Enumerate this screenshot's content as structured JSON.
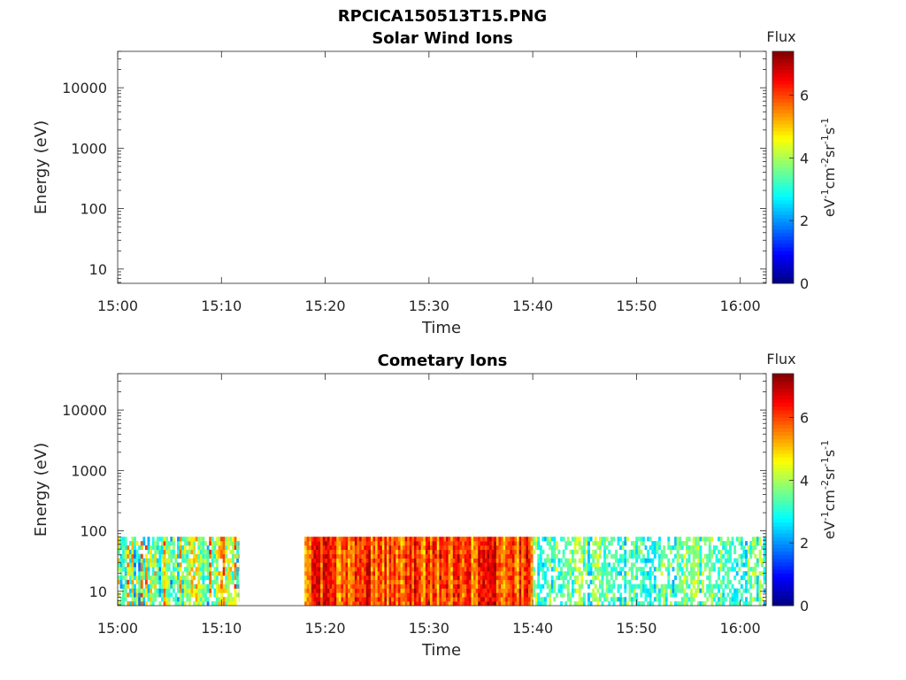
{
  "figure": {
    "title": "RPCICA150513T15.PNG"
  },
  "colorbar": {
    "title": "Flux",
    "ticks": [
      0,
      2,
      4,
      6
    ],
    "range": [
      0,
      7.4
    ],
    "label_base": "eV",
    "label_parts": [
      "-1",
      "cm",
      "-2",
      "sr",
      "-1",
      "s",
      "-1"
    ],
    "colormap": "jet"
  },
  "chart_data": [
    {
      "type": "heatmap",
      "title": "Solar Wind Ions",
      "xlabel": "Time",
      "ylabel": "Energy (eV)",
      "x_ticks": [
        "15:00",
        "15:10",
        "15:20",
        "15:30",
        "15:40",
        "15:50",
        "16:00"
      ],
      "x_range_minutes": [
        0,
        62.5
      ],
      "y_scale": "log",
      "y_ticks": [
        10,
        100,
        1000,
        10000
      ],
      "y_tick_labels": [
        "10",
        "100",
        "1000",
        "10000"
      ],
      "y_range": [
        5.8,
        40000
      ],
      "segments": []
    },
    {
      "type": "heatmap",
      "title": "Cometary Ions",
      "xlabel": "Time",
      "ylabel": "Energy (eV)",
      "x_ticks": [
        "15:00",
        "15:10",
        "15:20",
        "15:30",
        "15:40",
        "15:50",
        "16:00"
      ],
      "x_range_minutes": [
        0,
        62.5
      ],
      "y_scale": "log",
      "y_ticks": [
        10,
        100,
        1000,
        10000
      ],
      "y_tick_labels": [
        "10",
        "100",
        "1000",
        "10000"
      ],
      "y_range": [
        5.8,
        40000
      ],
      "energy_range": [
        5.8,
        80
      ],
      "segments": [
        {
          "start": "15:00",
          "end": "15:11.7",
          "flux_min": 1.5,
          "flux_max": 6.5,
          "coverage": 0.8
        },
        {
          "start": "15:18",
          "end": "15:40",
          "flux_min": 4.5,
          "flux_max": 7.4,
          "coverage": 1.0
        },
        {
          "start": "15:40",
          "end": "16:02.5",
          "flux_min": 2.0,
          "flux_max": 4.8,
          "coverage": 0.6
        }
      ]
    }
  ]
}
